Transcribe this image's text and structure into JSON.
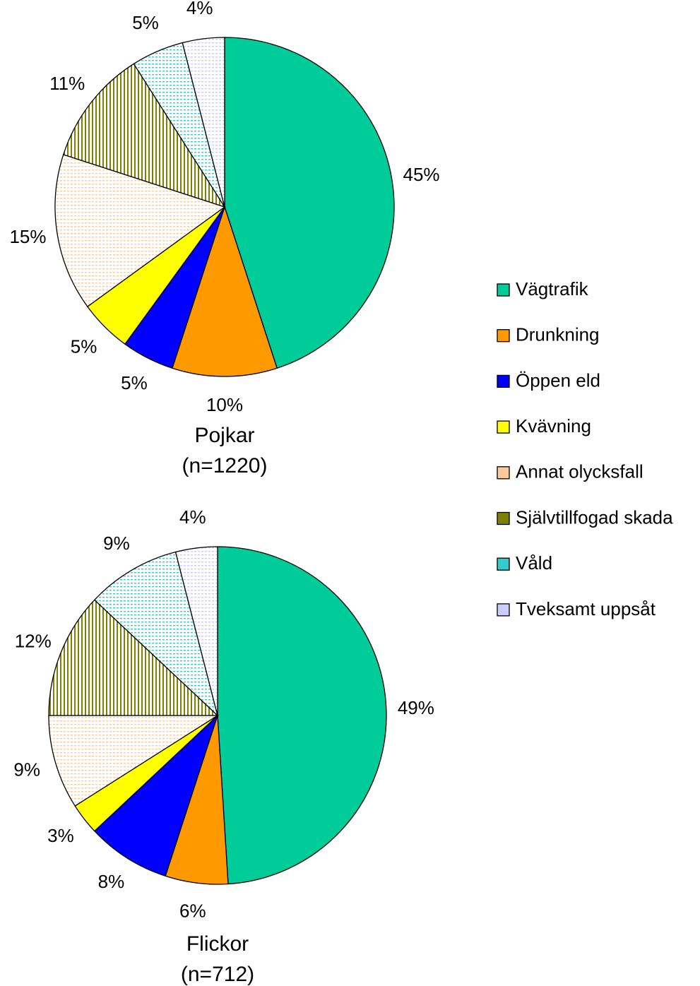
{
  "legend": {
    "categories": [
      "Vägtrafik",
      "Drunkning",
      "Öppen eld",
      "Kvävning",
      "Annat olycksfall",
      "Självtillfogad skada",
      "Våld",
      "Tveksamt uppsåt"
    ],
    "colors": [
      "#00cc99",
      "#ff9900",
      "#0000ff",
      "#ffff00",
      "#ffcc99",
      "#808000",
      "#33cccc",
      "#ccccff"
    ],
    "patterned": [
      false,
      false,
      false,
      false,
      true,
      true,
      true,
      true
    ]
  },
  "chart_data": [
    {
      "type": "pie",
      "title": "Pojkar",
      "subtitle": "(n=1220)",
      "values": [
        45,
        10,
        5,
        5,
        15,
        11,
        5,
        4
      ],
      "value_labels": [
        "45%",
        "10%",
        "5%",
        "5%",
        "15%",
        "11%",
        "5%",
        "4%"
      ]
    },
    {
      "type": "pie",
      "title": "Flickor",
      "subtitle": "(n=712)",
      "values": [
        49,
        6,
        8,
        3,
        9,
        12,
        9,
        4
      ],
      "value_labels": [
        "49%",
        "6%",
        "8%",
        "3%",
        "9%",
        "12%",
        "9%",
        "4%"
      ]
    }
  ]
}
